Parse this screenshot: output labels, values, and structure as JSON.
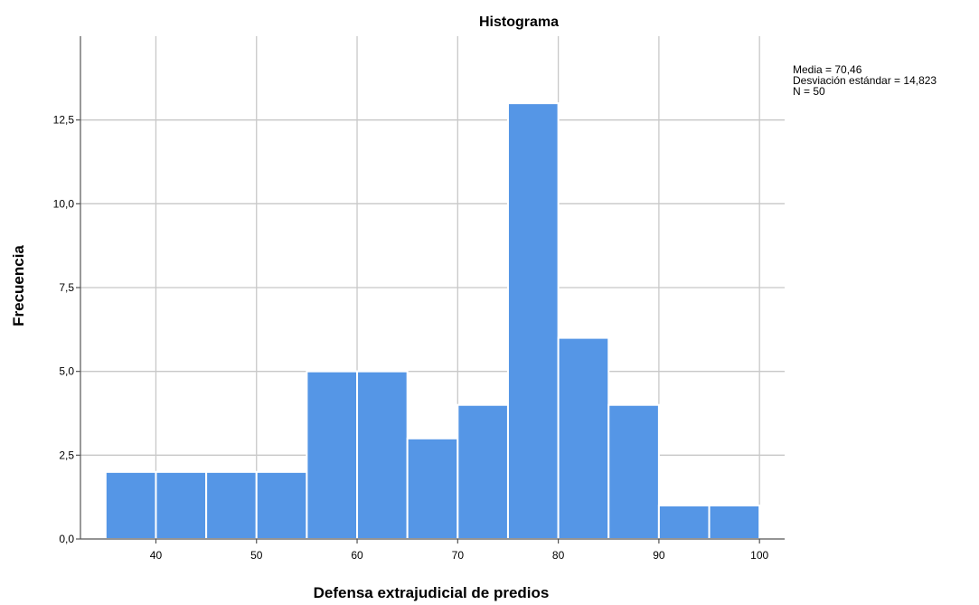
{
  "chart_data": {
    "type": "bar",
    "title": "Histograma",
    "xlabel": "Defensa extrajudicial de predios",
    "ylabel": "Frecuencia",
    "bin_width": 5,
    "bins": [
      {
        "start": 35,
        "end": 40,
        "count": 2
      },
      {
        "start": 40,
        "end": 45,
        "count": 2
      },
      {
        "start": 45,
        "end": 50,
        "count": 2
      },
      {
        "start": 50,
        "end": 55,
        "count": 2
      },
      {
        "start": 55,
        "end": 60,
        "count": 5
      },
      {
        "start": 60,
        "end": 65,
        "count": 5
      },
      {
        "start": 65,
        "end": 70,
        "count": 3
      },
      {
        "start": 70,
        "end": 75,
        "count": 4
      },
      {
        "start": 75,
        "end": 80,
        "count": 13
      },
      {
        "start": 80,
        "end": 85,
        "count": 6
      },
      {
        "start": 85,
        "end": 90,
        "count": 4
      },
      {
        "start": 90,
        "end": 95,
        "count": 1
      },
      {
        "start": 95,
        "end": 100,
        "count": 1
      }
    ],
    "xlim": [
      32.5,
      102.5
    ],
    "ylim": [
      0,
      15
    ],
    "x_ticks": [
      40,
      50,
      60,
      70,
      80,
      90,
      100
    ],
    "x_tick_labels": [
      "40",
      "50",
      "60",
      "70",
      "80",
      "90",
      "100"
    ],
    "y_ticks": [
      0,
      2.5,
      5,
      7.5,
      10,
      12.5
    ],
    "y_tick_labels": [
      "0,0",
      "2,5",
      "5,0",
      "7,5",
      "10,0",
      "12,5"
    ],
    "grid": true,
    "bar_color": "#5596e6",
    "stats": {
      "mean": "Media = 70,46",
      "std": "Desviación estándar = 14,823",
      "n": "N = 50"
    },
    "stats_placement": "top-right"
  }
}
